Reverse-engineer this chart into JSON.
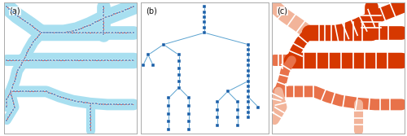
{
  "figure_width": 5.0,
  "figure_height": 1.67,
  "dpi": 100,
  "bg_color": "#ffffff",
  "border_color": "#aaaaaa",
  "panel_labels": [
    "(a)",
    "(b)",
    "(c)"
  ],
  "panel_label_fontsize": 7,
  "panel_label_color": "#111111",
  "light_blue": "#a8dff0",
  "node_color": "#1a5fa8",
  "edge_color": "#5ba3d0",
  "red_line": "#cc0000",
  "orange_dark": "#d63800",
  "orange_med": "#e8724a",
  "orange_light": "#f2b49a",
  "white": "#ffffff"
}
